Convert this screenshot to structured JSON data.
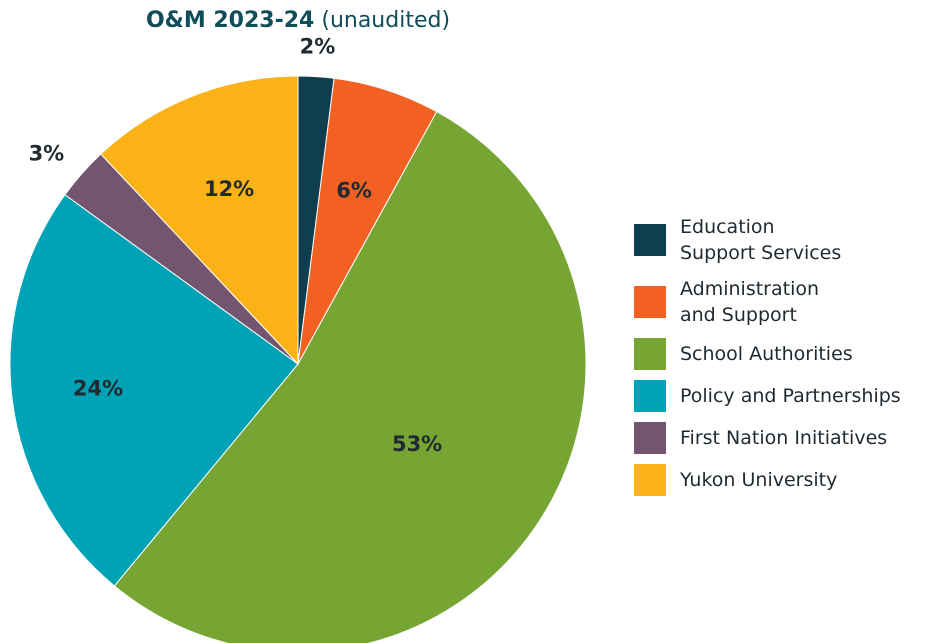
{
  "title": {
    "main": "O&M 2023-24",
    "suffix": "(unaudited)"
  },
  "chart_data": {
    "type": "pie",
    "title": "O&M 2023-24 (unaudited)",
    "slices": [
      {
        "name": "Education\nSupport Services",
        "value": 2,
        "label": "2%",
        "color": "#0f3f4f"
      },
      {
        "name": "Administration\nand Support",
        "value": 6,
        "label": "6%",
        "color": "#f26122"
      },
      {
        "name": "School Authorities",
        "value": 53,
        "label": "53%",
        "color": "#76a533"
      },
      {
        "name": "Policy and Partnerships",
        "value": 24,
        "label": "24%",
        "color": "#00a2b5"
      },
      {
        "name": "First Nation Initiatives",
        "value": 3,
        "label": "3%",
        "color": "#735570"
      },
      {
        "name": "Yukon University",
        "value": 12,
        "label": "12%",
        "color": "#fbb217"
      }
    ],
    "start": "12 o'clock",
    "direction": "clockwise",
    "legend_position": "right"
  }
}
